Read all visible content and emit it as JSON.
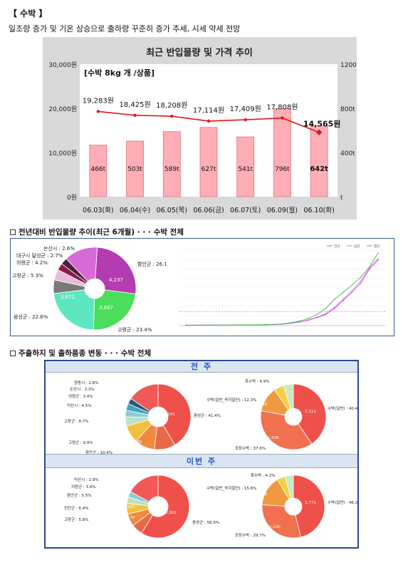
{
  "title": "【 수박 】",
  "subtitle": "일조량 증가 및 기온 상승으로 출하량 꾸준히 증가 추세, 시세 약세 전망",
  "chart_main": {
    "title": "최근 반입물량 및 가격 추이",
    "unit_label": "[수박 8kg 개 /상품]",
    "categories": [
      "06.03(화)",
      "06.04(수)",
      "06.05(목)",
      "06.06(금)",
      "06.07(토)",
      "06.09(월)",
      "06.10(화)"
    ],
    "volume_labels": [
      "466t",
      "503t",
      "589t",
      "627t",
      "541t",
      "796t",
      "642t"
    ],
    "volume": [
      466,
      503,
      589,
      627,
      541,
      796,
      642
    ],
    "price_labels": [
      "19,283원",
      "18,425원",
      "18,208원",
      "17,114원",
      "17,409원",
      "17,808원",
      "14,565원"
    ],
    "price": [
      19283,
      18425,
      18208,
      17114,
      17409,
      17808,
      14565
    ],
    "left_axis": [
      "30,000원",
      "20,000원",
      "10,000원",
      "0원"
    ],
    "right_axis": [
      "1200t",
      "800t",
      "400t",
      "t"
    ],
    "left_max": 30000,
    "right_max": 1200,
    "colors": {
      "bar": "#ffaeb5",
      "bar_border": "#e0707c",
      "line": "#e01818",
      "bg": "#d9d9d9"
    }
  },
  "section1_title": "전년대비 반입물량 추이(최근 6개월) · · · 수박 전체",
  "pie1": {
    "labels": [
      "함안군 : 26.1%",
      "고령군 : 23.4%",
      "음성군 : 22.6%",
      "고창군 : 5.3%",
      "의령군 : 4.2%",
      "대구시 달성군 : 2.7%",
      "논산시 : 2.6%"
    ],
    "inner_values": [
      "4,237",
      "3,887",
      "3,671"
    ],
    "slices": [
      {
        "value": 26.1,
        "color": "#b23cb0"
      },
      {
        "value": 23.4,
        "color": "#4ade5a"
      },
      {
        "value": 22.6,
        "color": "#5ee6c0"
      },
      {
        "value": 5.3,
        "color": "#7a7a7a"
      },
      {
        "value": 4.2,
        "color": "#e8bcd8"
      },
      {
        "value": 2.7,
        "color": "#8a1a4a"
      },
      {
        "value": 2.6,
        "color": "#4a2040"
      },
      {
        "value": 13.1,
        "color": "#d86ad8"
      }
    ]
  },
  "line_chart": {
    "type": "line",
    "legend": [
      "전년",
      "금년",
      "평년"
    ],
    "series": [
      {
        "name": "전년",
        "color": "#e040e0",
        "values": [
          5,
          5,
          5,
          6,
          6,
          6,
          6,
          6,
          7,
          8,
          10,
          14,
          22,
          35,
          52,
          80,
          110,
          170,
          250,
          330,
          420,
          560,
          650
        ]
      },
      {
        "name": "금년",
        "color": "#c080f0",
        "values": [
          5,
          5,
          5,
          6,
          6,
          6,
          6,
          7,
          7,
          9,
          11,
          15,
          24,
          38,
          56,
          85,
          118,
          180,
          262,
          345,
          440,
          575,
          665
        ]
      },
      {
        "name": "평년",
        "color": "#40c040",
        "values": [
          5,
          5,
          5,
          6,
          6,
          6,
          7,
          7,
          8,
          9,
          12,
          17,
          28,
          45,
          70,
          110,
          170,
          260,
          330,
          400,
          480,
          580,
          720
        ]
      }
    ],
    "ref_line": 140
  },
  "section2_title": "주출하지 및 출하품종 변동 · · · 수박 전체",
  "prev_week": {
    "band": "전 주",
    "region_labels": [
      "음성군 : 41.4%",
      "함안군 : 10.4%",
      "고령군 : 9.9%",
      "고창군 : 8.7%",
      "익산시 : 4.5%",
      "의령군 : 3.4%",
      "논산시 : 3.3%",
      "양동시 : 2.8%"
    ],
    "region_inner": [
      "1,141",
      "285",
      "271",
      "240"
    ],
    "region_slices": [
      {
        "value": 41.4,
        "color": "#f0504a"
      },
      {
        "value": 10.4,
        "color": "#e76a48"
      },
      {
        "value": 9.9,
        "color": "#f08a40"
      },
      {
        "value": 8.7,
        "color": "#f2c040"
      },
      {
        "value": 4.5,
        "color": "#c0e0c0"
      },
      {
        "value": 3.4,
        "color": "#88cfd8"
      },
      {
        "value": 3.3,
        "color": "#48a0c0"
      },
      {
        "value": 2.8,
        "color": "#2a5a80"
      },
      {
        "value": 15.6,
        "color": "#f25858"
      }
    ],
    "variety_labels": [
      "수박(일반) : 40.4%",
      "포장수박 : 37.6%",
      "수박(일반_꼭지절단) : 12.3%",
      "흑수박 : 4.9%"
    ],
    "variety_inner": [
      "1,112",
      "1,036",
      "340"
    ],
    "variety_slices": [
      {
        "value": 40.4,
        "color": "#f0504a"
      },
      {
        "value": 37.6,
        "color": "#f07050"
      },
      {
        "value": 12.3,
        "color": "#f09a40"
      },
      {
        "value": 4.9,
        "color": "#f2d040"
      },
      {
        "value": 4.8,
        "color": "#c8e8c8"
      }
    ]
  },
  "this_week": {
    "band": "이번 주",
    "region_labels": [
      "음성군 : 58.9%",
      "고창군 : 5.8%",
      "진천군 : 6.4%",
      "함안군 : 5.5%",
      "의령군 : 3.4%",
      "익산시 : 2.9%"
    ],
    "region_inner": [
      "2,202",
      "170",
      "165"
    ],
    "region_slices": [
      {
        "value": 58.9,
        "color": "#f0504a"
      },
      {
        "value": 5.8,
        "color": "#e76a48"
      },
      {
        "value": 6.4,
        "color": "#f08a40"
      },
      {
        "value": 5.5,
        "color": "#f2c040"
      },
      {
        "value": 3.4,
        "color": "#c0e0c0"
      },
      {
        "value": 2.9,
        "color": "#88cfd8"
      },
      {
        "value": 17.1,
        "color": "#f25858"
      }
    ],
    "variety_labels": [
      "수박(일반) : 46.2%",
      "포장수박 : 29.7%",
      "수박(일반_꼭지절단) : 15.6%",
      "흑수박 : 4.2%"
    ],
    "variety_inner": [
      "1,771",
      "1,140",
      "598"
    ],
    "variety_slices": [
      {
        "value": 46.2,
        "color": "#f0504a"
      },
      {
        "value": 29.7,
        "color": "#f07050"
      },
      {
        "value": 15.6,
        "color": "#f09a40"
      },
      {
        "value": 4.2,
        "color": "#f2d040"
      },
      {
        "value": 4.3,
        "color": "#c8e8c8"
      }
    ]
  }
}
